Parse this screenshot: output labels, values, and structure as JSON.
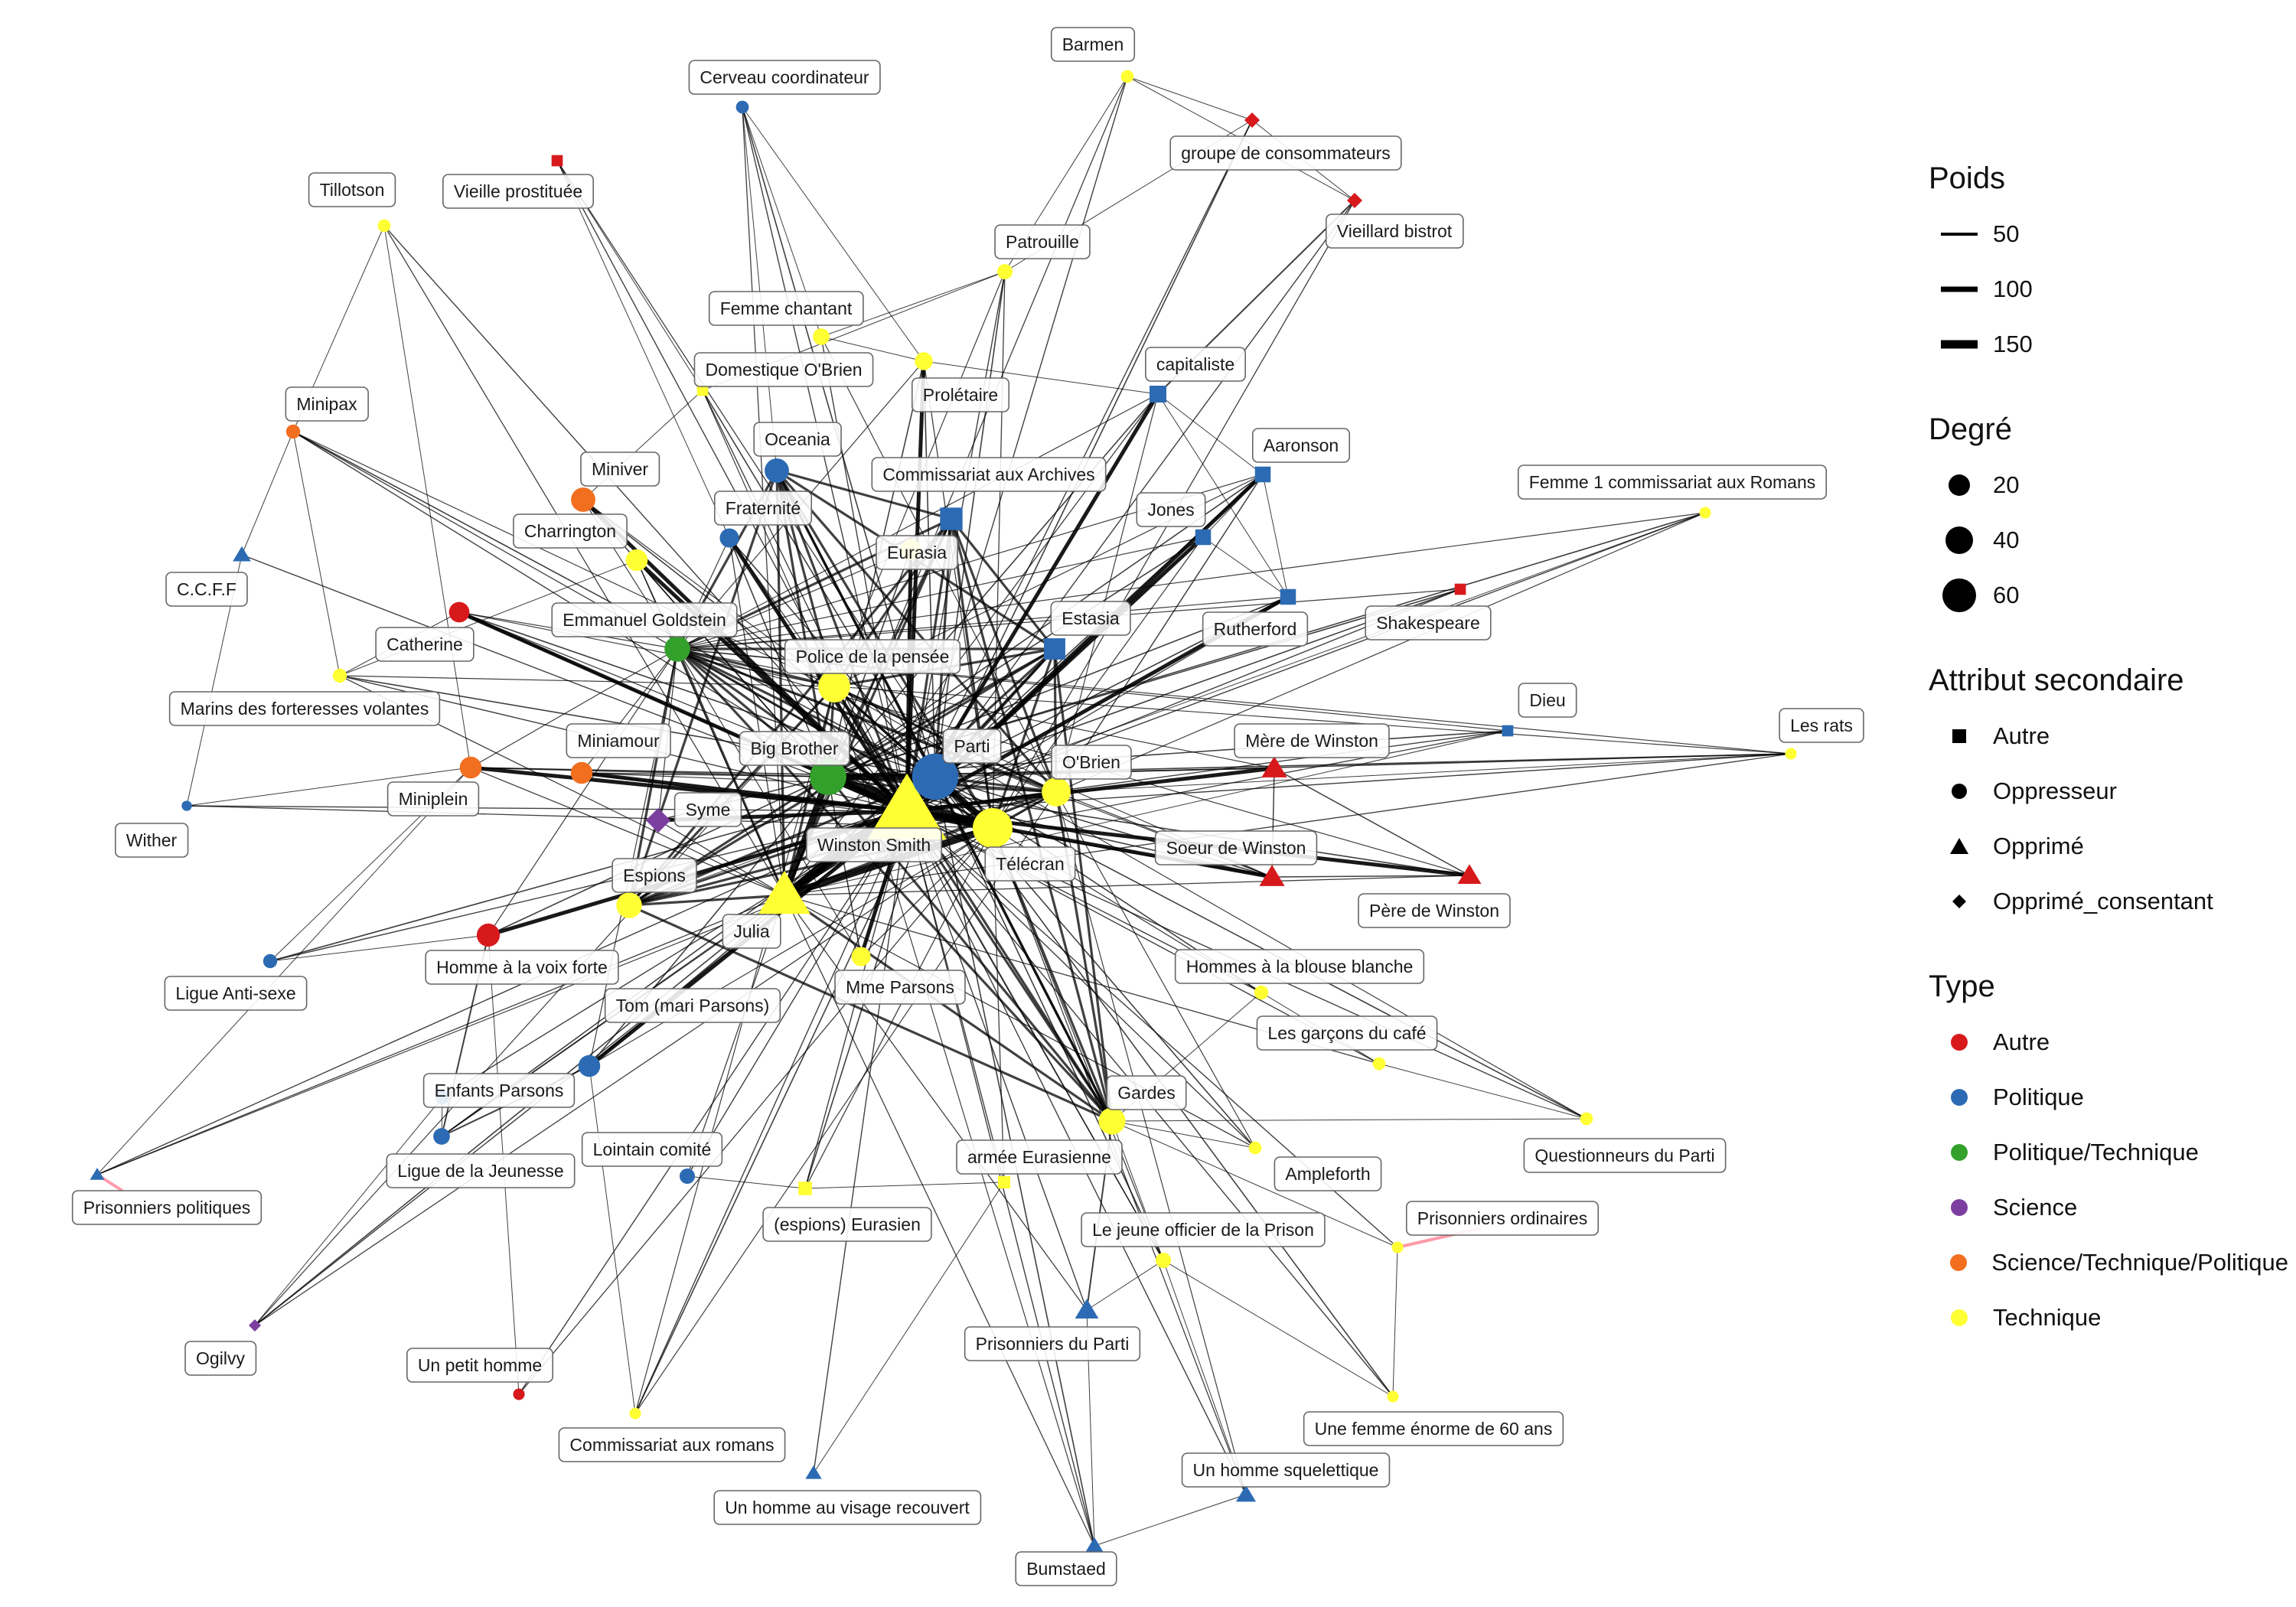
{
  "colors": {
    "Autre": "#d7191c",
    "Politique": "#2c6bb4",
    "Politique/Technique": "#33a02c",
    "Science": "#7b3fa0",
    "Science/Technique/Politique": "#f26f1f",
    "Technique": "#ffff33"
  },
  "legend": {
    "poids": {
      "title": "Poids",
      "items": [
        "50",
        "100",
        "150"
      ]
    },
    "degre": {
      "title": "Degré",
      "items": [
        "20",
        "40",
        "60"
      ]
    },
    "attribut": {
      "title": "Attribut secondaire",
      "items": [
        {
          "label": "Autre",
          "shape": "square"
        },
        {
          "label": "Oppresseur",
          "shape": "circle"
        },
        {
          "label": "Opprimé",
          "shape": "triangle"
        },
        {
          "label": "Opprimé_consentant",
          "shape": "diamond"
        }
      ]
    },
    "type": {
      "title": "Type",
      "items": [
        "Autre",
        "Politique",
        "Politique/Technique",
        "Science",
        "Science/Technique/Politique",
        "Technique"
      ]
    }
  },
  "nodes": [
    {
      "label": "Winston Smith",
      "type": "Technique",
      "attr": "Opprimé",
      "degree": 75
    },
    {
      "label": "Parti",
      "type": "Politique",
      "attr": "Oppresseur",
      "degree": 60
    },
    {
      "label": "Télécran",
      "type": "Technique",
      "attr": "Oppresseur",
      "degree": 50
    },
    {
      "label": "Big Brother",
      "type": "Politique/Technique",
      "attr": "Oppresseur",
      "degree": 45
    },
    {
      "label": "Julia",
      "type": "Technique",
      "attr": "Opprimé",
      "degree": 45
    },
    {
      "label": "Police de la pensée",
      "type": "Technique",
      "attr": "Oppresseur",
      "degree": 38
    },
    {
      "label": "O'Brien",
      "type": "Technique",
      "attr": "Oppresseur",
      "degree": 33
    },
    {
      "label": "Emmanuel Goldstein",
      "type": "Politique/Technique",
      "attr": "Oppresseur",
      "degree": 28
    },
    {
      "label": "Commissariat aux Archives",
      "type": "Politique",
      "attr": "Autre",
      "degree": 28
    },
    {
      "label": "Estasia",
      "type": "Politique",
      "attr": "Autre",
      "degree": 26
    },
    {
      "label": "Oceania",
      "type": "Politique",
      "attr": "Oppresseur",
      "degree": 26
    },
    {
      "label": "Gardes",
      "type": "Technique",
      "attr": "Oppresseur",
      "degree": 30
    },
    {
      "label": "Espions",
      "type": "Technique",
      "attr": "Oppresseur",
      "degree": 28
    },
    {
      "label": "Charrington",
      "type": "Technique",
      "attr": "Oppresseur",
      "degree": 22
    },
    {
      "label": "Miniver",
      "type": "Science/Technique/Politique",
      "attr": "Oppresseur",
      "degree": 26
    },
    {
      "label": "Miniamour",
      "type": "Science/Technique/Politique",
      "attr": "Oppresseur",
      "degree": 22
    },
    {
      "label": "Miniplein",
      "type": "Science/Technique/Politique",
      "attr": "Oppresseur",
      "degree": 22
    },
    {
      "label": "Homme à la voix forte",
      "type": "Autre",
      "attr": "Oppresseur",
      "degree": 24
    },
    {
      "label": "Catherine",
      "type": "Autre",
      "attr": "Oppresseur",
      "degree": 20
    },
    {
      "label": "Syme",
      "type": "Science",
      "attr": "Opprimé_consentant",
      "degree": 20
    },
    {
      "label": "Tom (mari Parsons)",
      "type": "Politique",
      "attr": "Oppresseur",
      "degree": 22
    },
    {
      "label": "Mme Parsons",
      "type": "Technique",
      "attr": "Oppresseur",
      "degree": 18
    },
    {
      "label": "Fraternité",
      "type": "Politique",
      "attr": "Oppresseur",
      "degree": 18
    },
    {
      "label": "Eurasia",
      "type": "Technique",
      "attr": "Oppresseur",
      "degree": 20
    },
    {
      "label": "Prolétaire",
      "type": "Technique",
      "attr": "Oppresseur",
      "degree": 16
    },
    {
      "label": "capitaliste",
      "type": "Politique",
      "attr": "Autre",
      "degree": 18
    },
    {
      "label": "Aaronson",
      "type": "Politique",
      "attr": "Autre",
      "degree": 16
    },
    {
      "label": "Jones",
      "type": "Politique",
      "attr": "Autre",
      "degree": 16
    },
    {
      "label": "Rutherford",
      "type": "Politique",
      "attr": "Autre",
      "degree": 16
    },
    {
      "label": "Mère de Winston",
      "type": "Autre",
      "attr": "Opprimé",
      "degree": 16
    },
    {
      "label": "Soeur de Winston",
      "type": "Autre",
      "attr": "Opprimé",
      "degree": 16
    },
    {
      "label": "Père de Winston",
      "type": "Autre",
      "attr": "Opprimé",
      "degree": 14
    },
    {
      "label": "Shakespeare",
      "type": "Autre",
      "attr": "Autre",
      "degree": 8
    },
    {
      "label": "Dieu",
      "type": "Politique",
      "attr": "Autre",
      "degree": 8
    },
    {
      "label": "Les rats",
      "type": "Technique",
      "attr": "Oppresseur",
      "degree": 6
    },
    {
      "label": "Femme 1 commissariat aux Romans",
      "type": "Technique",
      "attr": "Oppresseur",
      "degree": 6
    },
    {
      "label": "Hommes à la blouse blanche",
      "type": "Technique",
      "attr": "Oppresseur",
      "degree": 10
    },
    {
      "label": "Les garçons du café",
      "type": "Technique",
      "attr": "Oppresseur",
      "degree": 8
    },
    {
      "label": "Questionneurs du Parti",
      "type": "Technique",
      "attr": "Oppresseur",
      "degree": 8
    },
    {
      "label": "armée Eurasienne",
      "type": "Technique",
      "attr": "Autre",
      "degree": 10
    },
    {
      "label": "Ampleforth",
      "type": "Technique",
      "attr": "Oppresseur",
      "degree": 8
    },
    {
      "label": "Prisonniers ordinaires",
      "type": "Technique",
      "attr": "Oppresseur",
      "degree": 6
    },
    {
      "label": "Le jeune officier de la Prison",
      "type": "Technique",
      "attr": "Oppresseur",
      "degree": 12
    },
    {
      "label": "Prisonniers du Parti",
      "type": "Politique",
      "attr": "Opprimé",
      "degree": 14
    },
    {
      "label": "Une femme énorme de 60 ans",
      "type": "Technique",
      "attr": "Oppresseur",
      "degree": 6
    },
    {
      "label": "Un homme squelettique",
      "type": "Politique",
      "attr": "Opprimé",
      "degree": 10
    },
    {
      "label": "Bumstaed",
      "type": "Politique",
      "attr": "Opprimé",
      "degree": 8
    },
    {
      "label": "Un homme  au visage recouvert",
      "type": "Politique",
      "attr": "Opprimé",
      "degree": 6
    },
    {
      "label": "(espions) Eurasien",
      "type": "Technique",
      "attr": "Autre",
      "degree": 12
    },
    {
      "label": "Lointain comité",
      "type": "Politique",
      "attr": "Oppresseur",
      "degree": 12
    },
    {
      "label": "Commissariat aux romans",
      "type": "Technique",
      "attr": "Oppresseur",
      "degree": 6
    },
    {
      "label": "Un petit homme",
      "type": "Autre",
      "attr": "Oppresseur",
      "degree": 6
    },
    {
      "label": "Enfants Parsons",
      "type": "Politique",
      "attr": "Oppresseur",
      "degree": 14
    },
    {
      "label": "Ligue de la Jeunesse",
      "type": "Politique",
      "attr": "Oppresseur",
      "degree": 10
    },
    {
      "label": "Ogilvy",
      "type": "Science",
      "attr": "Opprimé_consentant",
      "degree": 4
    },
    {
      "label": "Prisonniers politiques",
      "type": "Politique",
      "attr": "Opprimé",
      "degree": 4
    },
    {
      "label": "Ligue Anti-sexe",
      "type": "Politique",
      "attr": "Oppresseur",
      "degree": 10
    },
    {
      "label": "Wither",
      "type": "Politique",
      "attr": "Oppresseur",
      "degree": 4
    },
    {
      "label": "Marins des forteresses volantes",
      "type": "Technique",
      "attr": "Oppresseur",
      "degree": 10
    },
    {
      "label": "C.C.F.F",
      "type": "Politique",
      "attr": "Opprimé",
      "degree": 8
    },
    {
      "label": "Minipax",
      "type": "Science/Technique/Politique",
      "attr": "Oppresseur",
      "degree": 10
    },
    {
      "label": "Tillotson",
      "type": "Technique",
      "attr": "Oppresseur",
      "degree": 8
    },
    {
      "label": "Domestique O'Brien",
      "type": "Technique",
      "attr": "Autre",
      "degree": 8
    },
    {
      "label": "Vieille prostituée",
      "type": "Autre",
      "attr": "Autre",
      "degree": 8
    },
    {
      "label": "Cerveau coordinateur",
      "type": "Politique",
      "attr": "Oppresseur",
      "degree": 8
    },
    {
      "label": "Femme chantant",
      "type": "Technique",
      "attr": "Oppresseur",
      "degree": 14
    },
    {
      "label": "Patrouille",
      "type": "Technique",
      "attr": "Oppresseur",
      "degree": 12
    },
    {
      "label": "Barmen",
      "type": "Technique",
      "attr": "Oppresseur",
      "degree": 8
    },
    {
      "label": "groupe de consommateurs",
      "type": "Autre",
      "attr": "Opprimé_consentant",
      "degree": 8
    },
    {
      "label": "Vieillard bistrot",
      "type": "Autre",
      "attr": "Opprimé_consentant",
      "degree": 8
    }
  ]
}
